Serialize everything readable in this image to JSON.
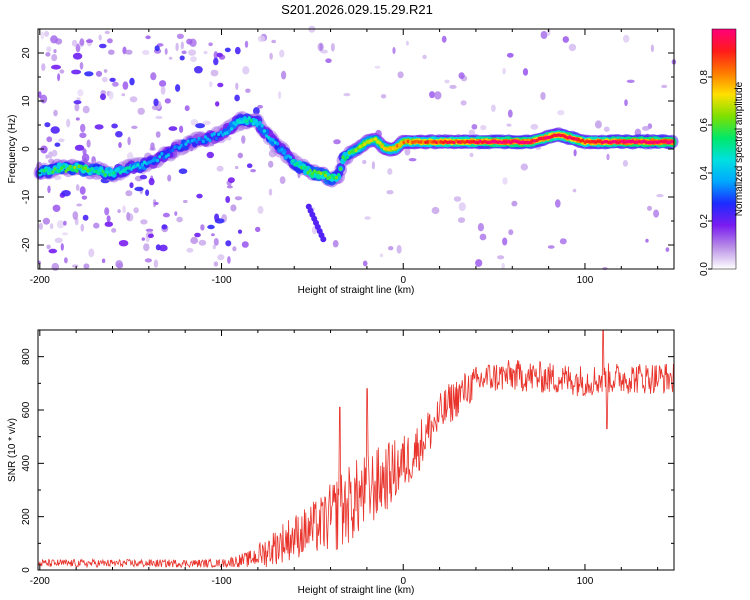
{
  "figure_title": "S201.2026.029.15.29.R21",
  "chart_data": [
    {
      "type": "heatmap",
      "title": "S201.2026.029.15.29.R21",
      "xlabel": "Height of straight line (km)",
      "ylabel": "Frequency (Hz)",
      "xlim": [
        -201,
        149
      ],
      "ylim": [
        -25,
        25
      ],
      "xticks": [
        -200,
        -100,
        0,
        100
      ],
      "yticks": [
        -20,
        -10,
        0,
        10,
        20
      ],
      "colorbar": {
        "label": "Normalized spectral amplitude",
        "range": [
          0,
          1
        ],
        "ticks": [
          "0.0",
          "0.2",
          "0.4",
          "0.6",
          "0.8"
        ],
        "colors": [
          "#ffffff",
          "#b98fe6",
          "#7a1cf0",
          "#1c2aff",
          "#00a8ff",
          "#00e0e0",
          "#00e86a",
          "#7ee000",
          "#ffe000",
          "#ff7a00",
          "#ff1a1a",
          "#ff007a"
        ]
      },
      "ridge_x": [
        -200,
        -190,
        -180,
        -170,
        -160,
        -150,
        -140,
        -130,
        -120,
        -110,
        -100,
        -95,
        -90,
        -85,
        -80,
        -75,
        -70,
        -65,
        -60,
        -55,
        -50,
        -45,
        -40,
        -36,
        -33,
        -30,
        -25,
        -20,
        -15,
        -10,
        -5,
        0,
        10,
        20,
        30,
        40,
        50,
        60,
        70,
        75,
        80,
        85,
        90,
        95,
        100,
        105,
        110,
        120,
        130,
        140,
        149
      ],
      "ridge_y": [
        -5,
        -4,
        -4,
        -4.5,
        -5,
        -4,
        -3,
        -1,
        1,
        2,
        3,
        4.5,
        6,
        6,
        5.5,
        3,
        1,
        -1,
        -3,
        -4,
        -5,
        -5.5,
        -6,
        -6,
        -2,
        -1,
        0,
        1.5,
        2,
        0,
        0,
        1.5,
        1.5,
        1.5,
        1.5,
        1.5,
        1.5,
        1.5,
        1.5,
        2,
        2.5,
        3,
        2.5,
        2,
        1.5,
        1.5,
        1.5,
        1.5,
        1.5,
        1.5,
        1.5
      ],
      "ridge_strength": [
        0.45,
        0.5,
        0.55,
        0.5,
        0.45,
        0.4,
        0.35,
        0.3,
        0.3,
        0.3,
        0.3,
        0.35,
        0.45,
        0.45,
        0.4,
        0.35,
        0.35,
        0.35,
        0.4,
        0.5,
        0.55,
        0.6,
        0.55,
        0.5,
        0.5,
        0.55,
        0.6,
        0.65,
        0.65,
        0.7,
        0.75,
        0.75,
        0.8,
        0.85,
        0.85,
        0.9,
        0.95,
        0.95,
        0.95,
        0.9,
        0.9,
        0.85,
        0.9,
        0.9,
        0.85,
        0.85,
        0.9,
        0.95,
        0.95,
        0.95,
        0.95
      ]
    },
    {
      "type": "line",
      "xlabel": "Height of straight line (km)",
      "ylabel": "SNR (10 * v/v)",
      "xlim": [
        -201,
        149
      ],
      "ylim": [
        0,
        900
      ],
      "xticks": [
        -200,
        -100,
        0,
        100
      ],
      "yticks": [
        0,
        200,
        400,
        600,
        800
      ],
      "series": [
        {
          "name": "SNR",
          "color": "#e8322a",
          "trend_x": [
            -201,
            -150,
            -100,
            -85,
            -75,
            -65,
            -55,
            -45,
            -35,
            -25,
            -15,
            -5,
            5,
            15,
            25,
            35,
            45,
            60,
            80,
            100,
            120,
            149
          ],
          "trend_y": [
            25,
            25,
            25,
            40,
            70,
            110,
            140,
            170,
            220,
            270,
            320,
            370,
            430,
            530,
            620,
            680,
            720,
            730,
            720,
            710,
            720,
            720
          ],
          "spread": [
            15,
            15,
            15,
            30,
            60,
            80,
            90,
            110,
            150,
            150,
            140,
            120,
            100,
            90,
            80,
            70,
            60,
            60,
            60,
            60,
            60,
            60
          ],
          "peaks_x": [
            -35,
            -20,
            110,
            112
          ],
          "peaks_y": [
            610,
            680,
            900,
            530
          ]
        }
      ]
    }
  ]
}
